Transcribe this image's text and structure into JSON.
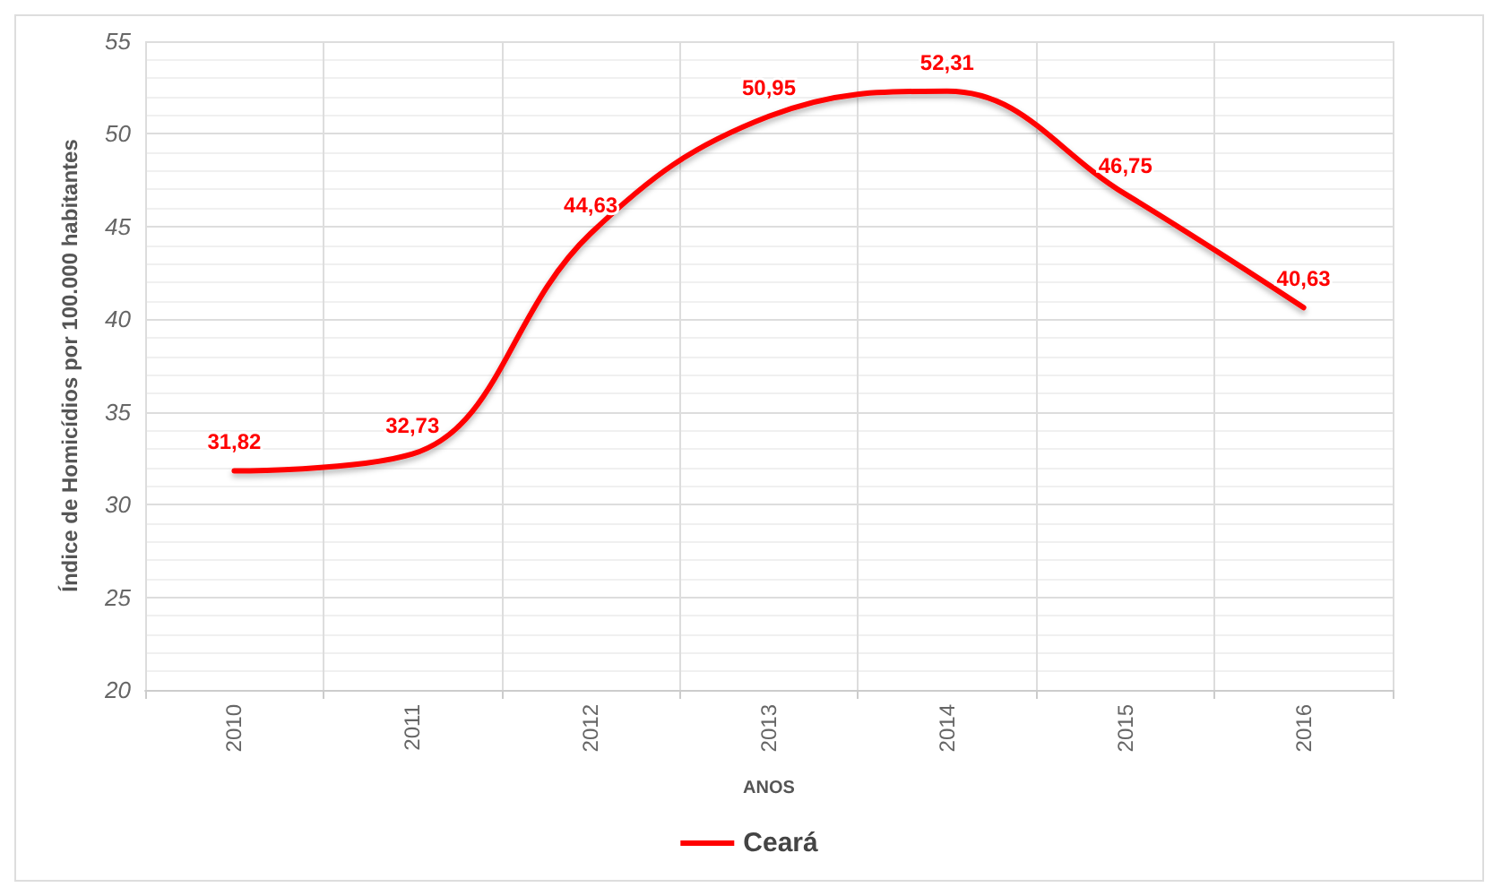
{
  "chart_data": {
    "type": "line",
    "xlabel": "ANOS",
    "ylabel": "Índice de Homicídios por 100.000 habitantes",
    "categories": [
      "2010",
      "2011",
      "2012",
      "2013",
      "2014",
      "2015",
      "2016"
    ],
    "series": [
      {
        "name": "Ceará",
        "color": "#ff0000",
        "values": [
          31.82,
          32.73,
          44.63,
          50.95,
          52.31,
          46.75,
          40.63
        ],
        "value_labels": [
          "31,82",
          "32,73",
          "44,63",
          "50,95",
          "52,31",
          "46,75",
          "40,63"
        ]
      }
    ],
    "ylim": [
      20,
      55
    ],
    "yticks": [
      20,
      25,
      30,
      35,
      40,
      45,
      50,
      55
    ],
    "grid": true,
    "legend": "bottom",
    "marker": "none",
    "line_style": "solid"
  }
}
